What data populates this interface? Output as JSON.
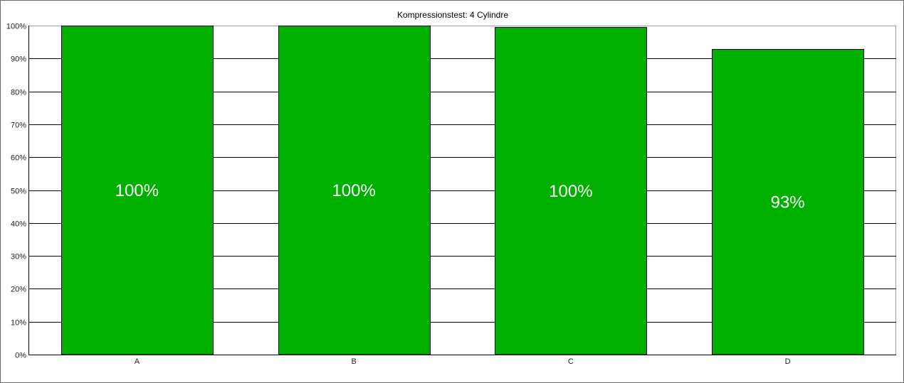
{
  "chart_data": {
    "type": "bar",
    "title": "Kompressionstest: 4 Cylindre",
    "categories": [
      "A",
      "B",
      "C",
      "D"
    ],
    "values": [
      100,
      100,
      99.6,
      92.9
    ],
    "data_labels": [
      "100%",
      "100%",
      "100%",
      "93%"
    ],
    "xlabel": "",
    "ylabel": "",
    "ylim": [
      0,
      100
    ],
    "yticks": [
      "0%",
      "10%",
      "20%",
      "30%",
      "40%",
      "50%",
      "60%",
      "70%",
      "80%",
      "90%",
      "100%"
    ],
    "grid": true,
    "legend": "none",
    "colors": {
      "bar": "#00b000",
      "bar_outline": "#000000",
      "data_label": "#ffffff",
      "grid": "#000000"
    }
  }
}
